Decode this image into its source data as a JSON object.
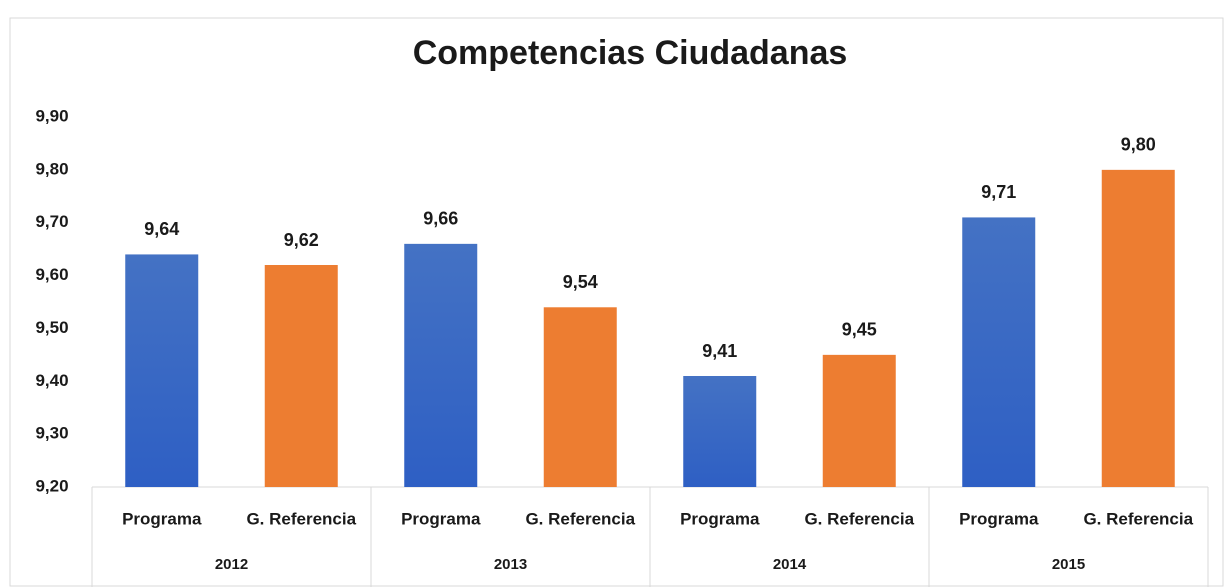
{
  "chart_data": {
    "type": "bar",
    "title": "Competencias Ciudadanas",
    "categories": [
      "2012",
      "2013",
      "2014",
      "2015"
    ],
    "series": [
      {
        "name": "Programa",
        "color": "#4472c4",
        "values": [
          9.64,
          9.66,
          9.41,
          9.71
        ],
        "value_labels": [
          "9,64",
          "9,66",
          "9,41",
          "9,71"
        ]
      },
      {
        "name": "G. Referencia",
        "color": "#ed7d31",
        "values": [
          9.62,
          9.54,
          9.45,
          9.8
        ],
        "value_labels": [
          "9,62",
          "9,54",
          "9,45",
          "9,80"
        ]
      }
    ],
    "ylim": [
      9.2,
      9.9
    ],
    "yticks": [
      {
        "value": 9.2,
        "label": "9,20"
      },
      {
        "value": 9.3,
        "label": "9,30"
      },
      {
        "value": 9.4,
        "label": "9,40"
      },
      {
        "value": 9.5,
        "label": "9,50"
      },
      {
        "value": 9.6,
        "label": "9,60"
      },
      {
        "value": 9.7,
        "label": "9,70"
      },
      {
        "value": 9.8,
        "label": "9,80"
      },
      {
        "value": 9.9,
        "label": "9,90"
      }
    ],
    "grid": false
  }
}
